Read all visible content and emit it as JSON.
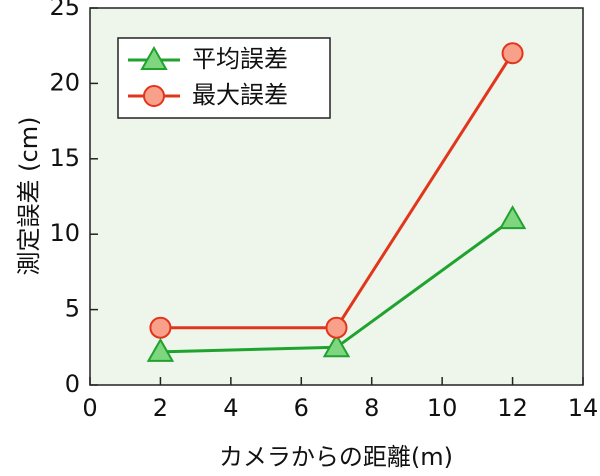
{
  "chart_data": {
    "type": "line",
    "x_label": "カメラからの距離(m)",
    "y_label": "測定誤差 (cm)",
    "x": [
      2,
      7,
      12
    ],
    "series": [
      {
        "name": "平均誤差",
        "color": "#1fa32e",
        "marker": "triangle",
        "values": [
          2.2,
          2.5,
          11
        ]
      },
      {
        "name": "最大誤差",
        "color": "#e2361c",
        "marker": "circle",
        "values": [
          3.8,
          3.8,
          22
        ]
      }
    ],
    "xlim": [
      0,
      14
    ],
    "xticks": [
      0,
      2,
      4,
      6,
      8,
      10,
      12,
      14
    ],
    "ylim": [
      0,
      25
    ],
    "yticks": [
      0,
      5,
      10,
      15,
      20,
      25
    ],
    "legend": "upper left",
    "background": "#eef5ea"
  }
}
